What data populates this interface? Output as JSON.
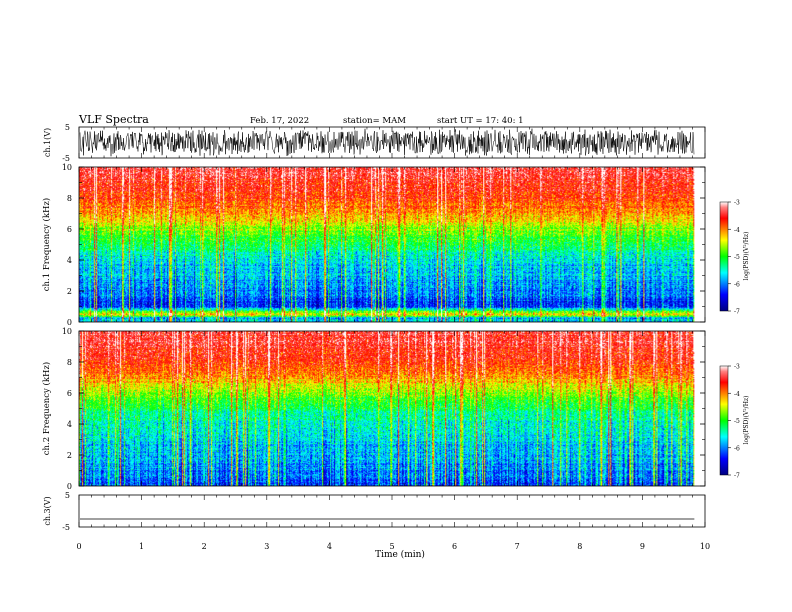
{
  "header": {
    "title": "VLF Spectra",
    "date": "Feb. 17, 2022",
    "station": "station= MAM",
    "start": "start  UT  =   17: 40: 1"
  },
  "chart_data": [
    {
      "type": "line",
      "panel": "ch1-waveform",
      "ylabel": "ch.1(V)",
      "ylim": [
        -5,
        5
      ],
      "yticks": [
        "5",
        "-5"
      ],
      "xlim": [
        0,
        10
      ],
      "data_extent_min": [
        0,
        9.83
      ],
      "signal": "dense broadband noise filling approx. -4.5 to 4.5 V"
    },
    {
      "type": "heatmap",
      "panel": "ch1-spectrogram",
      "ylabel": "ch.1\nFrequency (kHz)",
      "ylim": [
        0,
        10
      ],
      "yticks": [
        "0",
        "2",
        "4",
        "6",
        "8",
        "10"
      ],
      "xlim": [
        0,
        10
      ],
      "data_extent_min": [
        0,
        9.83
      ],
      "colorbar": {
        "label": "log(PSD)(V²/Hz)",
        "range": [
          -7,
          -3
        ],
        "ticks": [
          "-3",
          "-4",
          "-5",
          "-6",
          "-7"
        ]
      },
      "spectral_profile_log_psd": [
        {
          "freq_khz": 0.25,
          "value": -5.8
        },
        {
          "freq_khz": 0.5,
          "value": -4.2
        },
        {
          "freq_khz": 1,
          "value": -6.3
        },
        {
          "freq_khz": 2,
          "value": -6.0
        },
        {
          "freq_khz": 3,
          "value": -5.8
        },
        {
          "freq_khz": 4,
          "value": -5.6
        },
        {
          "freq_khz": 5,
          "value": -5.2
        },
        {
          "freq_khz": 6,
          "value": -4.7
        },
        {
          "freq_khz": 7,
          "value": -4.1
        },
        {
          "freq_khz": 8,
          "value": -3.7
        },
        {
          "freq_khz": 9,
          "value": -3.5
        },
        {
          "freq_khz": 10,
          "value": -3.4
        }
      ]
    },
    {
      "type": "heatmap",
      "panel": "ch2-spectrogram",
      "ylabel": "ch.2\nFrequency (kHz)",
      "ylim": [
        0,
        10
      ],
      "yticks": [
        "0",
        "2",
        "4",
        "6",
        "8",
        "10"
      ],
      "xlim": [
        0,
        10
      ],
      "data_extent_min": [
        0,
        9.83
      ],
      "colorbar": {
        "label": "log(PSD)(V²/Hz)",
        "range": [
          -7,
          -3
        ],
        "ticks": [
          "-3",
          "-4",
          "-5",
          "-6",
          "-7"
        ]
      },
      "spectral_profile_log_psd": [
        {
          "freq_khz": 0.25,
          "value": -6.2
        },
        {
          "freq_khz": 1,
          "value": -6.0
        },
        {
          "freq_khz": 2,
          "value": -5.8
        },
        {
          "freq_khz": 3,
          "value": -5.7
        },
        {
          "freq_khz": 4,
          "value": -5.5
        },
        {
          "freq_khz": 5,
          "value": -5.2
        },
        {
          "freq_khz": 6,
          "value": -4.7
        },
        {
          "freq_khz": 7,
          "value": -4.1
        },
        {
          "freq_khz": 8,
          "value": -3.7
        },
        {
          "freq_khz": 9,
          "value": -3.5
        },
        {
          "freq_khz": 10,
          "value": -3.4
        }
      ]
    },
    {
      "type": "line",
      "panel": "ch3-waveform",
      "ylabel": "ch.3(V)",
      "ylim": [
        -5,
        5
      ],
      "yticks": [
        "5",
        "-5"
      ],
      "xlim": [
        0,
        10
      ],
      "data_extent_min": [
        0,
        9.83
      ],
      "signal": "flat line near -2.5 V",
      "level_v": -2.5
    }
  ],
  "xaxis": {
    "xlabel": "Time (min)",
    "xticks": [
      "0",
      "1",
      "2",
      "3",
      "4",
      "5",
      "6",
      "7",
      "8",
      "9",
      "10"
    ]
  },
  "colors": {
    "colormap": [
      "#00008f",
      "#0000ff",
      "#00ffff",
      "#00ff00",
      "#ffff00",
      "#ff0000",
      "#ff8080",
      "#ffffff"
    ],
    "trace": "#000000",
    "axes": "#000000"
  }
}
